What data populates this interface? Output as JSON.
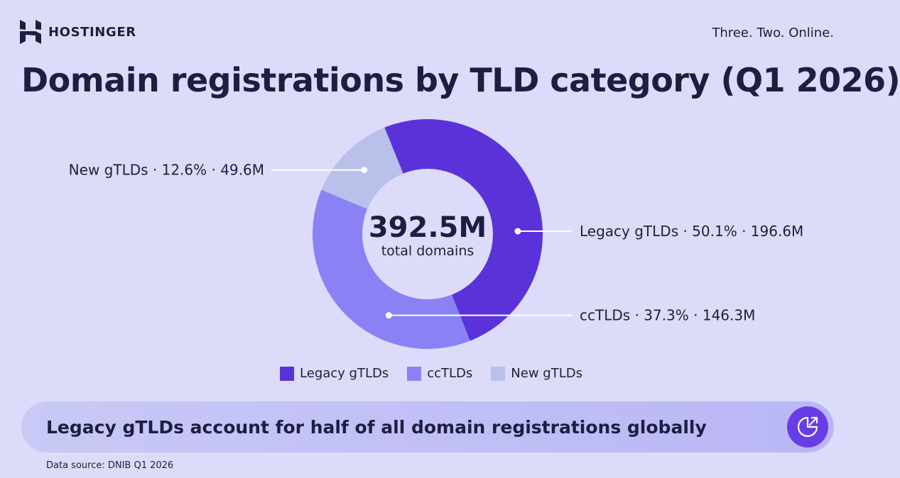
{
  "header": {
    "brand": "HOSTINGER",
    "tagline": "Three. Two. Online."
  },
  "title": "Domain registrations by TLD category (Q1 2026)",
  "chart_data": {
    "type": "pie",
    "variant": "donut",
    "title": "Domain registrations by TLD category (Q1 2026)",
    "center_value": "392.5M",
    "center_label": "total domains",
    "total": 392.5,
    "unit": "M",
    "legend_position": "bottom",
    "slices": [
      {
        "name": "Legacy gTLDs",
        "percent": 50.1,
        "value": 196.6,
        "label": "Legacy gTLDs · 50.1% · 196.6M",
        "color": "#5b32d9"
      },
      {
        "name": "ccTLDs",
        "percent": 37.3,
        "value": 146.3,
        "label": "ccTLDs · 37.3% · 146.3M",
        "color": "#8a82f4"
      },
      {
        "name": "New gTLDs",
        "percent": 12.6,
        "value": 49.6,
        "label": "New gTLDs · 12.6% · 49.6M",
        "color": "#b9c0ea"
      }
    ]
  },
  "legend": [
    {
      "label": "Legacy gTLDs",
      "color": "#5b32d9"
    },
    {
      "label": "ccTLDs",
      "color": "#8a82f4"
    },
    {
      "label": "New gTLDs",
      "color": "#b9c0ea"
    }
  ],
  "banner": {
    "text": "Legacy gTLDs account for half of all domain registrations globally",
    "icon": "chart-arrow-icon"
  },
  "source": "Data source: DNIB Q1 2026",
  "colors": {
    "background": "#dcdcfa",
    "text": "#1d1e40",
    "accent": "#673de6"
  }
}
